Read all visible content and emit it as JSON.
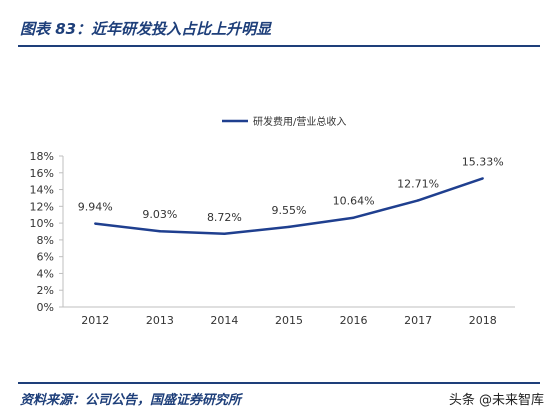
{
  "header": {
    "title": "图表 83：近年研发投入占比上升明显"
  },
  "footer": {
    "source": "资料来源：公司公告，国盛证券研究所",
    "watermark": "头条 @未来智库"
  },
  "colors": {
    "brand": "#1e3f7a",
    "series": "#1f3f8f",
    "axis": "#bfbfbf",
    "text": "#333333"
  },
  "chart_data": {
    "type": "line",
    "title": "",
    "xlabel": "",
    "ylabel": "",
    "legend_position": "top-center",
    "grid": false,
    "categories": [
      "2012",
      "2013",
      "2014",
      "2015",
      "2016",
      "2017",
      "2018"
    ],
    "series": [
      {
        "name": "研发费用/营业总收入",
        "values": [
          9.94,
          9.03,
          8.72,
          9.55,
          10.64,
          12.71,
          15.33
        ],
        "labels": [
          "9.94%",
          "9.03%",
          "8.72%",
          "9.55%",
          "10.64%",
          "12.71%",
          "15.33%"
        ]
      }
    ],
    "ylim": [
      0,
      18
    ],
    "yticks": [
      "0%",
      "2%",
      "4%",
      "6%",
      "8%",
      "10%",
      "12%",
      "14%",
      "16%",
      "18%"
    ]
  }
}
